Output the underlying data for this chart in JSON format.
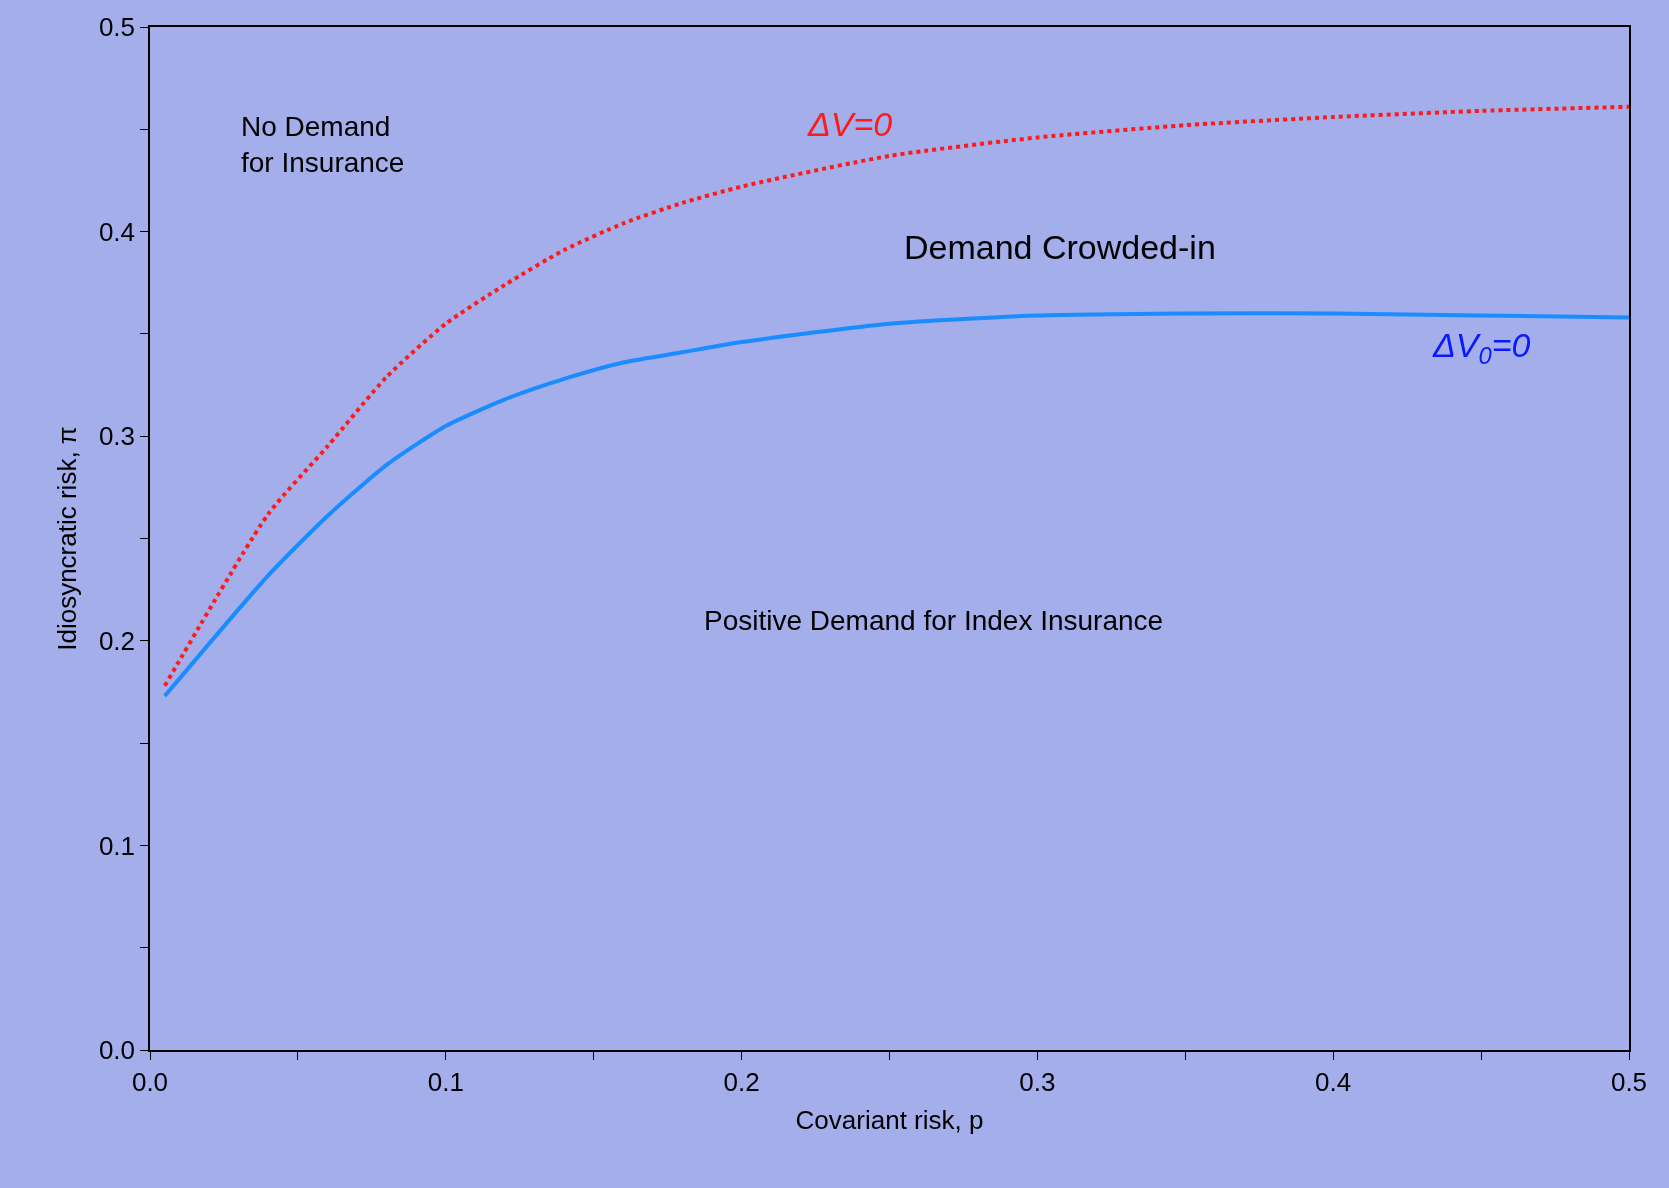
{
  "chart_data": {
    "type": "line",
    "xlabel": "Covariant risk, p",
    "ylabel": "Idiosyncratic risk, π",
    "x": [
      0.005,
      0.04,
      0.06,
      0.08,
      0.1,
      0.12,
      0.14,
      0.16,
      0.18,
      0.2,
      0.25,
      0.3,
      0.35,
      0.4,
      0.45,
      0.5
    ],
    "series": [
      {
        "name": "ΔV=0",
        "color": "#ff1a1a",
        "line_style": "dotted",
        "values": [
          0.178,
          0.262,
          0.295,
          0.329,
          0.355,
          0.374,
          0.391,
          0.404,
          0.414,
          0.422,
          0.437,
          0.446,
          0.452,
          0.456,
          0.459,
          0.461
        ]
      },
      {
        "name": "ΔV$_{0}$=0",
        "color": "#1a8cff",
        "line_style": "solid",
        "values": [
          0.173,
          0.232,
          0.261,
          0.286,
          0.305,
          0.318,
          0.328,
          0.336,
          0.341,
          0.346,
          0.355,
          0.359,
          0.36,
          0.36,
          0.359,
          0.358
        ]
      }
    ],
    "xlim": [
      0,
      0.5
    ],
    "ylim": [
      0,
      0.5
    ],
    "xticks": [
      {
        "value": 0,
        "label": "0.0"
      },
      {
        "value": 0.05,
        "label": null
      },
      0.1,
      {
        "value": 0.15,
        "label": null
      },
      0.2,
      {
        "value": 0.25,
        "label": null
      },
      0.3,
      {
        "value": 0.35,
        "label": null
      },
      0.4,
      {
        "value": 0.45,
        "label": null
      },
      0.5
    ],
    "yticks": [
      {
        "value": 0,
        "label": "0.0"
      },
      {
        "value": 0.05,
        "label": null
      },
      0.1,
      {
        "value": 0.15,
        "label": null
      },
      0.2,
      {
        "value": 0.25,
        "label": null
      },
      0.3,
      {
        "value": 0.35,
        "label": null
      },
      0.4,
      {
        "value": 0.45,
        "label": null
      },
      0.5
    ],
    "grid": false,
    "legend": false,
    "marker": "none",
    "annotations": [
      "No Demand\nfor Insurance",
      "Demand Crowded-in",
      "Positive Demand for Index Insurance"
    ]
  }
}
